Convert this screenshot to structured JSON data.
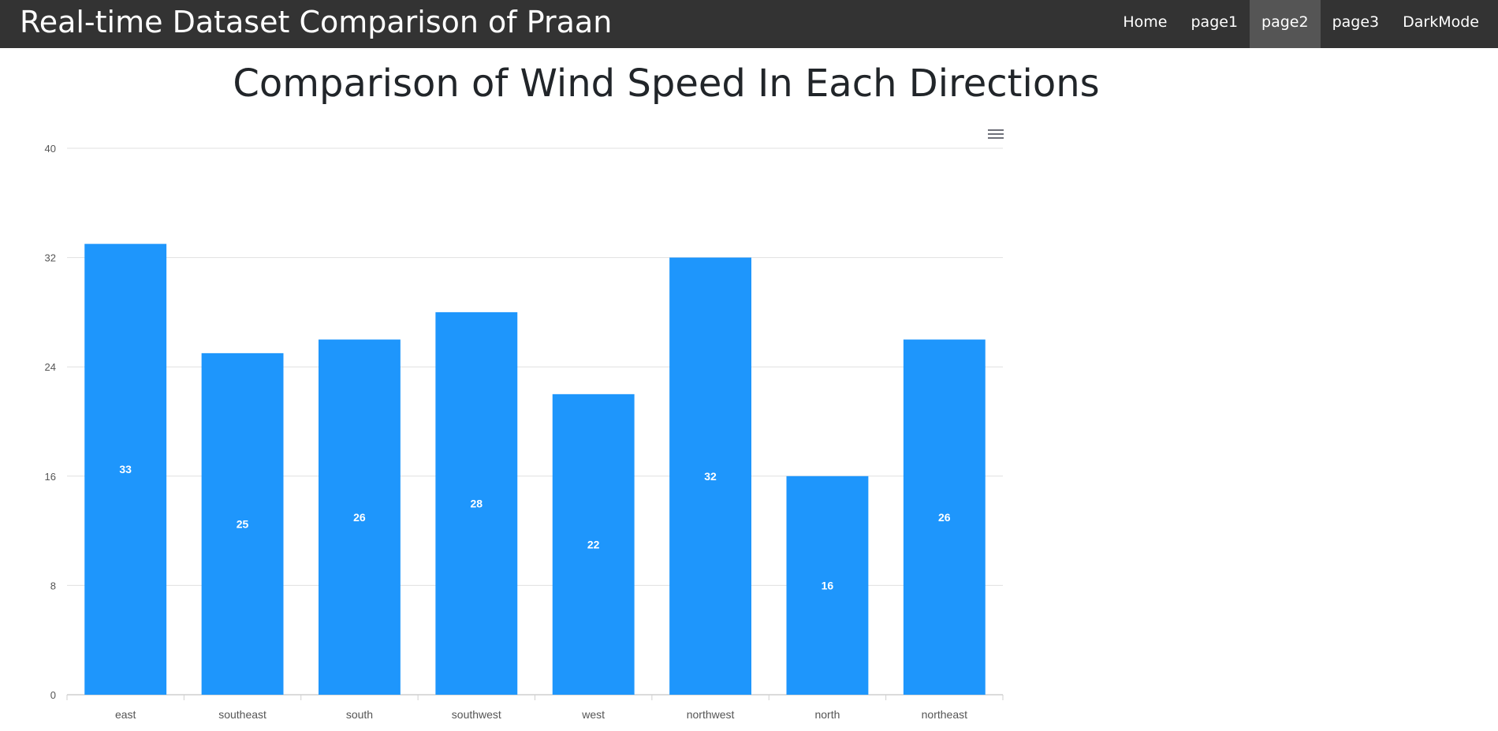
{
  "header": {
    "title": "Real-time Dataset Comparison of Praan",
    "nav": [
      {
        "label": "Home",
        "active": false
      },
      {
        "label": "page1",
        "active": false
      },
      {
        "label": "page2",
        "active": true
      },
      {
        "label": "page3",
        "active": false
      },
      {
        "label": "DarkMode",
        "active": false
      }
    ]
  },
  "main": {
    "title": "Comparison of Wind Speed In Each Directions"
  },
  "chart_data": {
    "type": "bar",
    "categories": [
      "east",
      "southeast",
      "south",
      "southwest",
      "west",
      "northwest",
      "north",
      "northeast"
    ],
    "values": [
      33,
      25,
      26,
      28,
      22,
      32,
      16,
      26
    ],
    "ylim": [
      0,
      40
    ],
    "yticks": [
      0,
      8,
      16,
      24,
      32,
      40
    ],
    "grid": true,
    "data_labels": "center",
    "colors": {
      "bar": "#1e96fc",
      "label": "#ffffff",
      "grid": "#e0e0e0",
      "axis": "#cfcfcf",
      "tick": "#555555"
    }
  },
  "icons": {
    "chart_menu": "hamburger-menu-icon"
  }
}
